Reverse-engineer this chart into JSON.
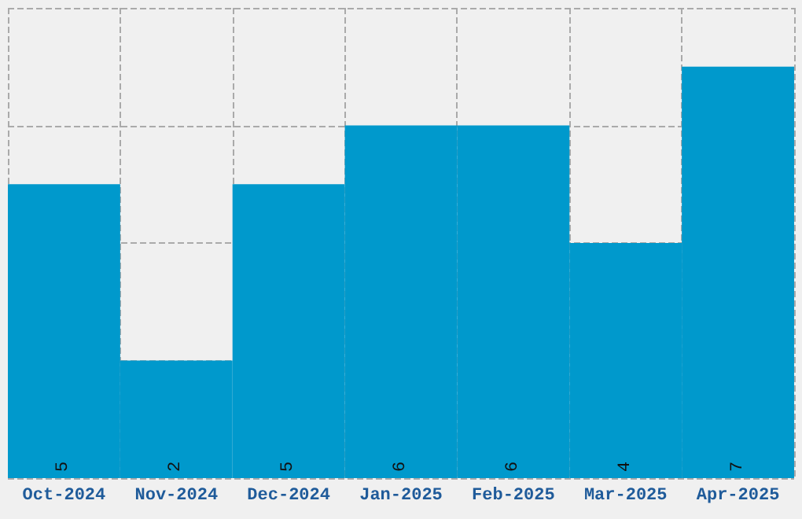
{
  "chart_data": {
    "type": "bar",
    "categories": [
      "Oct-2024",
      "Nov-2024",
      "Dec-2024",
      "Jan-2025",
      "Feb-2025",
      "Mar-2025",
      "Apr-2025"
    ],
    "values": [
      5,
      2,
      5,
      6,
      6,
      4,
      7
    ],
    "color": "#0099cc",
    "data_labels": true,
    "grid": true,
    "tick_labels": "x"
  }
}
